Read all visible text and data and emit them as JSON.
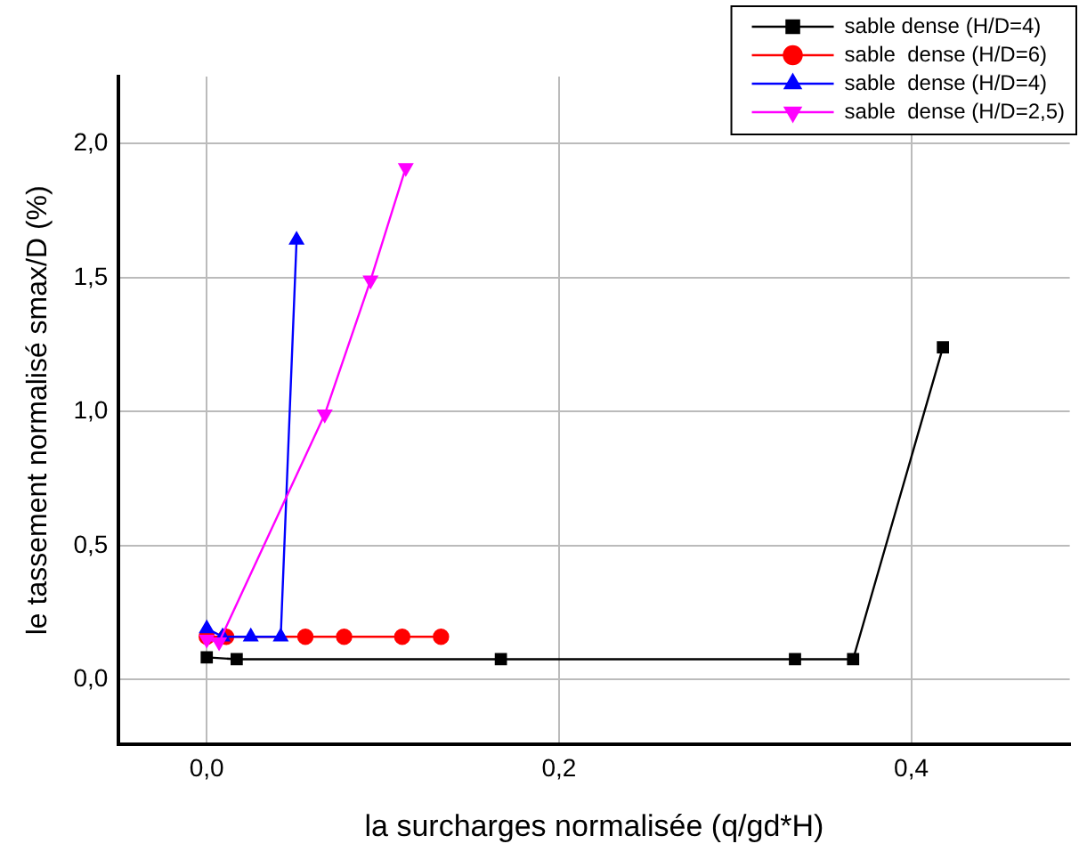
{
  "chart_data": {
    "type": "line",
    "xlabel": "la surcharges normalisée (q/gd*H)",
    "ylabel": "le tassement normalisé smax/D (%)",
    "xlim": [
      -0.05,
      0.49
    ],
    "xticks": [
      {
        "value": 0,
        "label": "0,0"
      },
      {
        "value": 0.2,
        "label": "0,2"
      },
      {
        "value": 0.4,
        "label": "0,4"
      }
    ],
    "ylim": [
      -0.24,
      2.25
    ],
    "yticks": [
      {
        "value": 0,
        "label": "0,0"
      },
      {
        "value": 0.5,
        "label": "0,5"
      },
      {
        "value": 1,
        "label": "1,0"
      },
      {
        "value": 1.5,
        "label": "1,5"
      },
      {
        "value": 2,
        "label": "2,0"
      }
    ],
    "grid": true,
    "legend": "top right",
    "line_style": "solid",
    "series": [
      {
        "name": "sable dense (H/D=4)",
        "color": "#000000",
        "marker": "square",
        "x": [
          0,
          0.017,
          0.167,
          0.334,
          0.367,
          0.418
        ],
        "values": [
          0.083,
          0.076,
          0.076,
          0.076,
          0.076,
          1.24
        ]
      },
      {
        "name": "sable  dense (H/D=6)",
        "color": "#ff0000",
        "marker": "circle",
        "x": [
          0,
          0.011,
          0.056,
          0.078,
          0.111,
          0.133
        ],
        "values": [
          0.16,
          0.16,
          0.16,
          0.16,
          0.16,
          0.16
        ]
      },
      {
        "name": "sable  dense (H/D=4)",
        "color": "#0000ff",
        "marker": "triangle",
        "x": [
          0,
          0.009,
          0.025,
          0.042,
          0.051
        ],
        "values": [
          0.19,
          0.16,
          0.16,
          0.16,
          1.64
        ]
      },
      {
        "name": "sable  dense (H/D=2,5)",
        "color": "#ff00ff",
        "marker": "triangle-down",
        "x": [
          0,
          0.007,
          0.067,
          0.093,
          0.113
        ],
        "values": [
          0.15,
          0.14,
          0.99,
          1.49,
          1.91
        ]
      }
    ]
  }
}
